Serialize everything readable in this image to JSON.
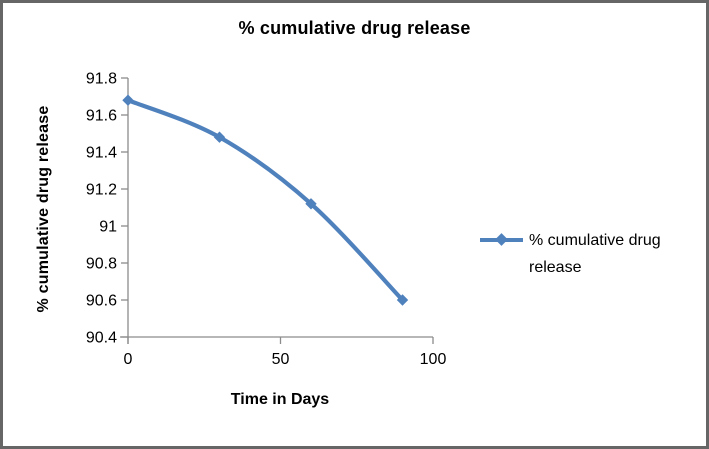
{
  "chart": {
    "title": "% cumulative drug release",
    "y_axis_title": "% cumulative drug release",
    "x_axis_title": "Time in Days",
    "legend_label": "% cumulative drug release",
    "colors": {
      "series": "#4F81BD",
      "axis_line": "#8C8C8C",
      "text": "#000000",
      "frame_border": "#666666"
    }
  },
  "chart_data": {
    "type": "line",
    "title": "% cumulative drug release",
    "xlabel": "Time in Days",
    "ylabel": "% cumulative drug release",
    "x": [
      0,
      30,
      60,
      90
    ],
    "series": [
      {
        "name": "% cumulative drug release",
        "values": [
          91.68,
          91.48,
          91.12,
          90.6
        ]
      }
    ],
    "xlim": [
      0,
      100
    ],
    "ylim": [
      90.4,
      91.8
    ],
    "x_ticks": [
      0,
      50,
      100
    ],
    "y_ticks": [
      90.4,
      90.6,
      90.8,
      91,
      91.2,
      91.4,
      91.6,
      91.8
    ],
    "grid": false,
    "legend_position": "right",
    "marker": "diamond",
    "smooth": true,
    "series_color": "#4F81BD"
  }
}
